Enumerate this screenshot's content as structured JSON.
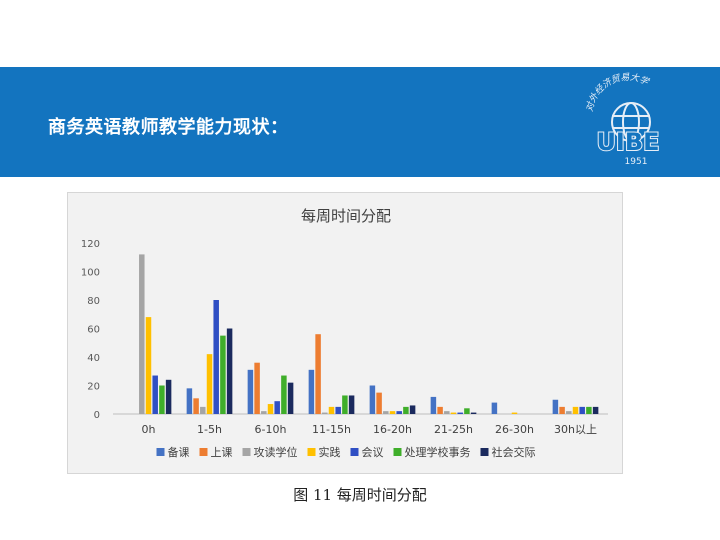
{
  "slide": {
    "title": "商务英语教师教学能力现状：",
    "caption": "图 11  每周时间分配",
    "banner_color": "#1374bf"
  },
  "logo": {
    "text": "UIBE",
    "year": "1951",
    "arc_text": "对外经济贸易大学"
  },
  "chart_data": {
    "type": "bar",
    "title": "每周时间分配",
    "categories": [
      "0h",
      "1-5h",
      "6-10h",
      "11-15h",
      "16-20h",
      "21-25h",
      "26-30h",
      "30h以上"
    ],
    "ylim": [
      0,
      120
    ],
    "yticks": [
      0,
      20,
      40,
      60,
      80,
      100,
      120
    ],
    "grid": false,
    "legend_position": "bottom",
    "series": [
      {
        "name": "备课",
        "color": "#4472c4",
        "values": [
          0,
          18,
          31,
          31,
          20,
          12,
          8,
          10
        ]
      },
      {
        "name": "上课",
        "color": "#ed7d31",
        "values": [
          0,
          11,
          36,
          56,
          15,
          5,
          0,
          5
        ]
      },
      {
        "name": "攻读学位",
        "color": "#a5a5a5",
        "values": [
          112,
          5,
          2,
          1,
          2,
          2,
          0,
          2
        ]
      },
      {
        "name": "实践",
        "color": "#ffc000",
        "values": [
          68,
          42,
          7,
          5,
          2,
          1,
          1,
          5
        ]
      },
      {
        "name": "会议",
        "color": "#2f4fc4",
        "values": [
          27,
          80,
          9,
          5,
          2,
          1,
          0,
          5
        ]
      },
      {
        "name": "处理学校事务",
        "color": "#3fae2a",
        "values": [
          20,
          55,
          27,
          13,
          5,
          4,
          0,
          5
        ]
      },
      {
        "name": "社会交际",
        "color": "#1b2a5e",
        "values": [
          24,
          60,
          22,
          13,
          6,
          1,
          0,
          5
        ]
      }
    ]
  }
}
